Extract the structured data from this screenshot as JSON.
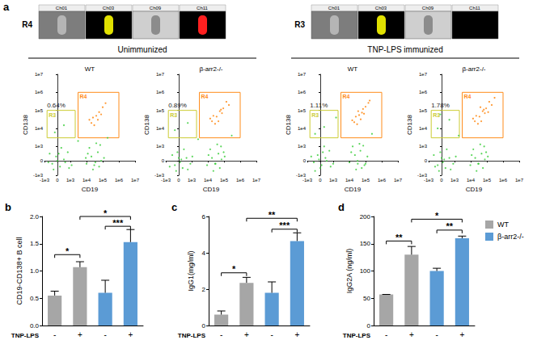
{
  "figure": {
    "panel_labels": [
      "a",
      "b",
      "c",
      "d"
    ],
    "groups": [
      "Unimmunized",
      "TNP-LPS immunized"
    ],
    "thumbnails": [
      {
        "label": "R4",
        "channels": [
          "Ch01",
          "Ch03",
          "Ch09",
          "Ch11"
        ],
        "colors": [
          "#b5b5b5",
          "#e0e000",
          "#8c8c8c",
          "#ff2020"
        ]
      },
      {
        "label": "R3",
        "channels": [
          "Ch01",
          "Ch03",
          "Ch09",
          "Ch11"
        ],
        "colors": [
          "#b5b5b5",
          "#e0e000",
          "#8c8c8c",
          null
        ]
      }
    ]
  },
  "chart_data": [
    {
      "type": "scatter",
      "title": "WT",
      "xlabel": "CD19",
      "ylabel": "CD138",
      "xlim": [
        -1000,
        10000000
      ],
      "ylim": [
        -1000,
        10000000
      ],
      "xticks": [
        {
          "value": -1000,
          "label": "-1e3"
        },
        0,
        {
          "value": 1000,
          "label": "1e3"
        },
        {
          "value": 10000,
          "label": "1e4"
        },
        {
          "value": 100000,
          "label": "1e5"
        },
        {
          "value": 1000000,
          "label": "1e6"
        },
        {
          "value": 10000000,
          "label": "1e7"
        }
      ],
      "yticks": [
        {
          "value": -1000,
          "label": "-1e3"
        },
        0,
        {
          "value": 1000,
          "label": "1e3"
        },
        {
          "value": 10000,
          "label": "1e4"
        },
        {
          "value": 100000,
          "label": "1e5"
        },
        {
          "value": 1000000,
          "label": "1e6"
        },
        {
          "value": 10000000,
          "label": "1e7"
        }
      ],
      "series": [
        {
          "color": "#33cc33",
          "x": [
            -400,
            -100,
            200,
            500,
            800,
            -600,
            0,
            300,
            1200,
            -300,
            600,
            100,
            -700,
            900,
            10000,
            20000,
            35000,
            50000,
            80000,
            15000,
            60000,
            120000,
            25000,
            40000,
            70000,
            12000,
            30000,
            9000,
            3000,
            -200,
            500,
            200000
          ],
          "values": [
            -200,
            300,
            -400,
            100,
            600,
            500,
            0,
            900,
            -300,
            -600,
            -100,
            500,
            -100,
            -500,
            -200,
            300,
            -100,
            600,
            0,
            900,
            -400,
            200,
            -600,
            1500,
            1200,
            500,
            -300,
            200,
            2000,
            6000,
            15000,
            3000
          ]
        },
        {
          "color": "#ff8000",
          "x": [
            20000,
            40000,
            60000,
            100000,
            30000,
            80000,
            15000,
            150000,
            50000,
            25000
          ],
          "values": [
            20000,
            50000,
            80000,
            150000,
            15000,
            60000,
            30000,
            250000,
            30000,
            40000
          ]
        }
      ],
      "gates": [
        {
          "label": "R3",
          "color": "#cccc33",
          "x": [
            -800,
            2000
          ],
          "y": [
            3000,
            100000
          ]
        },
        {
          "label": "R4",
          "color": "#ff8c1a",
          "x": [
            3000,
            1000000
          ],
          "y": [
            3000,
            1000000
          ]
        }
      ],
      "annotation": "0.64%"
    },
    {
      "type": "scatter",
      "title": "β-arr2-/-",
      "xlabel": "CD19",
      "ylabel": "CD138",
      "xlim": [
        -1000,
        10000000
      ],
      "ylim": [
        -1000,
        10000000
      ],
      "xticks": [
        {
          "value": -1000,
          "label": "-1e3"
        },
        0,
        {
          "value": 1000,
          "label": "1e3"
        },
        {
          "value": 10000,
          "label": "1e4"
        },
        {
          "value": 100000,
          "label": "1e5"
        },
        {
          "value": 1000000,
          "label": "1e6"
        },
        {
          "value": 10000000,
          "label": "1e7"
        }
      ],
      "yticks": [
        {
          "value": -1000,
          "label": "-1e3"
        },
        0,
        {
          "value": 1000,
          "label": "1e3"
        },
        {
          "value": 10000,
          "label": "1e4"
        },
        {
          "value": 100000,
          "label": "1e5"
        },
        {
          "value": 1000000,
          "label": "1e6"
        },
        {
          "value": 10000000,
          "label": "1e7"
        }
      ],
      "series": [
        {
          "color": "#33cc33",
          "x": [
            -300,
            0,
            300,
            600,
            -500,
            100,
            400,
            900,
            -100,
            -700,
            700,
            200,
            1100,
            -200,
            9000,
            18000,
            30000,
            45000,
            70000,
            14000,
            55000,
            110000,
            22000,
            38000,
            65000,
            11000,
            28000,
            95000,
            -300,
            700,
            2500,
            300000
          ],
          "values": [
            -300,
            200,
            -500,
            200,
            400,
            -100,
            800,
            -200,
            600,
            -400,
            -600,
            100,
            300,
            -700,
            -300,
            200,
            -200,
            500,
            100,
            800,
            -500,
            300,
            -700,
            1300,
            1000,
            400,
            -200,
            600,
            8000,
            20000,
            2500,
            4000
          ]
        },
        {
          "color": "#ff8000",
          "x": [
            18000,
            35000,
            55000,
            90000,
            28000,
            75000,
            14000,
            140000,
            45000,
            22000,
            200000,
            65000
          ],
          "values": [
            25000,
            45000,
            90000,
            130000,
            18000,
            70000,
            35000,
            300000,
            25000,
            50000,
            200000,
            110000
          ]
        }
      ],
      "gates": [
        {
          "label": "R3",
          "color": "#cccc33",
          "x": [
            -800,
            2000
          ],
          "y": [
            3000,
            100000
          ]
        },
        {
          "label": "R4",
          "color": "#ff8c1a",
          "x": [
            3000,
            1000000
          ],
          "y": [
            3000,
            1000000
          ]
        }
      ],
      "annotation": "0.89%"
    },
    {
      "type": "scatter",
      "title": "WT",
      "xlabel": "CD19",
      "ylabel": "CD138",
      "xlim": [
        -1000,
        10000000
      ],
      "ylim": [
        -1000,
        10000000
      ],
      "xticks": [
        {
          "value": -1000,
          "label": "-1e3"
        },
        0,
        {
          "value": 1000,
          "label": "1e3"
        },
        {
          "value": 10000,
          "label": "1e4"
        },
        {
          "value": 100000,
          "label": "1e5"
        },
        {
          "value": 1000000,
          "label": "1e6"
        },
        {
          "value": 10000000,
          "label": "1e7"
        }
      ],
      "yticks": [
        {
          "value": -1000,
          "label": "-1e3"
        },
        0,
        {
          "value": 1000,
          "label": "1e3"
        },
        {
          "value": 10000,
          "label": "1e4"
        },
        {
          "value": 100000,
          "label": "1e5"
        },
        {
          "value": 1000000,
          "label": "1e6"
        },
        {
          "value": 10000000,
          "label": "1e7"
        }
      ],
      "series": [
        {
          "color": "#33cc33",
          "x": [
            -500,
            -200,
            100,
            400,
            700,
            -700,
            0,
            300,
            1000,
            -400,
            500,
            200,
            -100,
            800,
            10000,
            22000,
            33000,
            48000,
            85000,
            16000,
            58000,
            130000,
            26000,
            42000,
            72000,
            13000,
            32000,
            100000,
            -400,
            300,
            1500,
            250000
          ],
          "values": [
            -100,
            400,
            -300,
            200,
            700,
            300,
            -500,
            1000,
            -200,
            -700,
            0,
            600,
            100,
            -400,
            -100,
            400,
            -200,
            700,
            -300,
            1000,
            -500,
            300,
            -600,
            1400,
            1100,
            600,
            0,
            -200,
            5000,
            12000,
            40000,
            5000
          ]
        },
        {
          "color": "#ff8000",
          "x": [
            20000,
            40000,
            60000,
            100000,
            30000,
            80000,
            15000,
            150000,
            50000,
            25000,
            180000,
            70000,
            35000
          ],
          "values": [
            22000,
            55000,
            75000,
            160000,
            17000,
            65000,
            28000,
            260000,
            32000,
            45000,
            350000,
            120000,
            90000
          ]
        }
      ],
      "gates": [
        {
          "label": "R3",
          "color": "#cccc33",
          "x": [
            -800,
            2000
          ],
          "y": [
            3000,
            100000
          ]
        },
        {
          "label": "R4",
          "color": "#ff8c1a",
          "x": [
            3000,
            1000000
          ],
          "y": [
            3000,
            1000000
          ]
        }
      ],
      "annotation": "1.11%"
    },
    {
      "type": "scatter",
      "title": "β-arr2-/-",
      "xlabel": "CD19",
      "ylabel": "CD138",
      "xlim": [
        -1000,
        10000000
      ],
      "ylim": [
        -1000,
        10000000
      ],
      "xticks": [
        {
          "value": -1000,
          "label": "-1e3"
        },
        0,
        {
          "value": 1000,
          "label": "1e3"
        },
        {
          "value": 10000,
          "label": "1e4"
        },
        {
          "value": 100000,
          "label": "1e5"
        },
        {
          "value": 1000000,
          "label": "1e6"
        },
        {
          "value": 10000000,
          "label": "1e7"
        }
      ],
      "yticks": [
        {
          "value": -1000,
          "label": "-1e3"
        },
        0,
        {
          "value": 1000,
          "label": "1e3"
        },
        {
          "value": 10000,
          "label": "1e4"
        },
        {
          "value": 100000,
          "label": "1e5"
        },
        {
          "value": 1000000,
          "label": "1e6"
        },
        {
          "value": 10000000,
          "label": "1e7"
        }
      ],
      "series": [
        {
          "color": "#33cc33",
          "x": [
            -300,
            0,
            300,
            600,
            -600,
            100,
            400,
            900,
            -100,
            -500,
            700,
            200,
            1200,
            -200,
            9500,
            19000,
            31000,
            47000,
            75000,
            14500,
            57000,
            115000,
            23000,
            39000,
            68000,
            11500,
            29000,
            90000,
            -300,
            600,
            1800,
            -100
          ],
          "values": [
            -300,
            200,
            -500,
            200,
            400,
            -100,
            800,
            -200,
            600,
            -400,
            -600,
            100,
            300,
            -700,
            -300,
            200,
            -200,
            500,
            100,
            800,
            -500,
            300,
            -700,
            1300,
            1000,
            400,
            -200,
            600,
            10000,
            30000,
            4000,
            60000
          ]
        },
        {
          "color": "#ff8000",
          "x": [
            18000,
            35000,
            55000,
            90000,
            28000,
            75000,
            14000,
            140000,
            45000,
            22000,
            200000,
            65000,
            120000,
            40000,
            300000
          ],
          "values": [
            25000,
            45000,
            90000,
            130000,
            18000,
            70000,
            35000,
            300000,
            25000,
            50000,
            200000,
            110000,
            80000,
            150000,
            500000
          ]
        }
      ],
      "gates": [
        {
          "label": "R3",
          "color": "#cccc33",
          "x": [
            -800,
            2000
          ],
          "y": [
            3000,
            100000
          ]
        },
        {
          "label": "R4",
          "color": "#ff8c1a",
          "x": [
            3000,
            1000000
          ],
          "y": [
            3000,
            1000000
          ]
        }
      ],
      "annotation": "1.78%"
    },
    {
      "type": "bar",
      "ylabel": "CD19-CD138+ B cell",
      "xlabel": "TNP-LPS",
      "categories": [
        "-",
        "+",
        "-",
        "+"
      ],
      "ylim": [
        0,
        2
      ],
      "yticks": [
        {
          "value": 0,
          "label": "0.0"
        },
        0.5,
        {
          "value": 1,
          "label": "1.0"
        },
        1.5,
        {
          "value": 2,
          "label": "2.0"
        }
      ],
      "series": [
        {
          "color": "#a6a6a6",
          "values": [
            0.55,
            1.07,
            null,
            null
          ],
          "errors": [
            0.08,
            0.1,
            null,
            null
          ]
        },
        {
          "color": "#5b9bd5",
          "values": [
            null,
            null,
            0.6,
            1.53
          ],
          "errors": [
            null,
            null,
            0.23,
            0.23
          ]
        }
      ],
      "significance": [
        {
          "from": 0,
          "to": 1,
          "y": 1.3,
          "label": "*"
        },
        {
          "from": 2,
          "to": 3,
          "y": 1.82,
          "label": "***"
        },
        {
          "from": 1,
          "to": 3,
          "y": 2,
          "label": "*"
        }
      ]
    },
    {
      "type": "bar",
      "ylabel": "IgG1(mg/ml)",
      "xlabel": "TNP-LPS",
      "categories": [
        "-",
        "+",
        "-",
        "+"
      ],
      "ylim": [
        0,
        6
      ],
      "yticks": [
        0,
        2,
        4,
        6
      ],
      "series": [
        {
          "color": "#a6a6a6",
          "values": [
            0.6,
            2.35,
            null,
            null
          ],
          "errors": [
            0.2,
            0.3,
            null,
            null
          ]
        },
        {
          "color": "#5b9bd5",
          "values": [
            null,
            null,
            1.8,
            4.65
          ],
          "errors": [
            null,
            null,
            0.6,
            0.45
          ]
        }
      ],
      "significance": [
        {
          "from": 0,
          "to": 1,
          "y": 2.9,
          "label": "*"
        },
        {
          "from": 2,
          "to": 3,
          "y": 5.3,
          "label": "***"
        },
        {
          "from": 1,
          "to": 3,
          "y": 5.9,
          "label": "**"
        }
      ]
    },
    {
      "type": "bar",
      "ylabel": "IgG2A (ng/ml)",
      "xlabel": "TNP-LPS",
      "categories": [
        "-",
        "+",
        "-",
        "+"
      ],
      "ylim": [
        0,
        200
      ],
      "yticks": [
        0,
        50,
        100,
        150,
        200
      ],
      "legend": "right",
      "series": [
        {
          "name": "WT",
          "color": "#a6a6a6",
          "values": [
            57,
            130,
            null,
            null
          ],
          "errors": [
            0,
            15,
            null,
            null
          ]
        },
        {
          "name": "β-arr2-/-",
          "color": "#5b9bd5",
          "values": [
            null,
            null,
            100,
            160
          ],
          "errors": [
            null,
            null,
            5,
            4
          ]
        }
      ],
      "significance": [
        {
          "from": 0,
          "to": 1,
          "y": 155,
          "label": "**"
        },
        {
          "from": 2,
          "to": 3,
          "y": 175,
          "label": "**"
        },
        {
          "from": 1,
          "to": 3,
          "y": 195,
          "label": "*"
        }
      ]
    }
  ]
}
